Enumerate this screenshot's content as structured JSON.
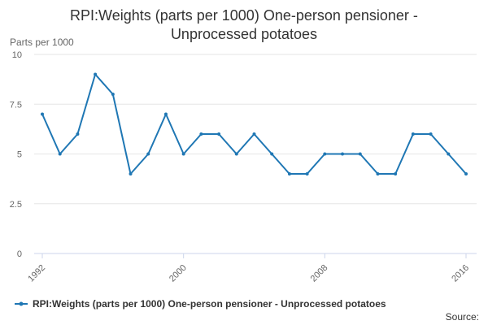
{
  "chart_data": {
    "type": "line",
    "title": "RPI:Weights (parts per 1000) One-person pensioner -",
    "title_line2": "Unprocessed potatoes",
    "ylabel": "Parts per 1000",
    "xlabel": "",
    "x": [
      1992,
      1993,
      1994,
      1995,
      1996,
      1997,
      1998,
      1999,
      2000,
      2001,
      2002,
      2003,
      2004,
      2005,
      2006,
      2007,
      2008,
      2009,
      2010,
      2011,
      2012,
      2013,
      2014,
      2015,
      2016
    ],
    "series": [
      {
        "name": "RPI:Weights (parts per 1000) One-person pensioner - Unprocessed potatoes",
        "values": [
          7,
          5,
          6,
          9,
          8,
          4,
          5,
          7,
          5,
          6,
          6,
          5,
          6,
          5,
          4,
          4,
          5,
          5,
          5,
          4,
          4,
          6,
          6,
          5,
          4
        ]
      }
    ],
    "xlim": [
      1992,
      2016
    ],
    "ylim": [
      0,
      10
    ],
    "x_ticks": [
      "1992",
      "2000",
      "2008",
      "2016"
    ],
    "y_ticks": [
      "0",
      "2.5",
      "5",
      "7.5",
      "10"
    ],
    "grid": "horizontal",
    "legend_position": "bottom",
    "source_label": "Source:",
    "colors": {
      "series": "#1f77b4",
      "grid": "#e6e6e6",
      "axis": "#ccd6eb",
      "text": "#333333",
      "muted": "#666666"
    }
  }
}
